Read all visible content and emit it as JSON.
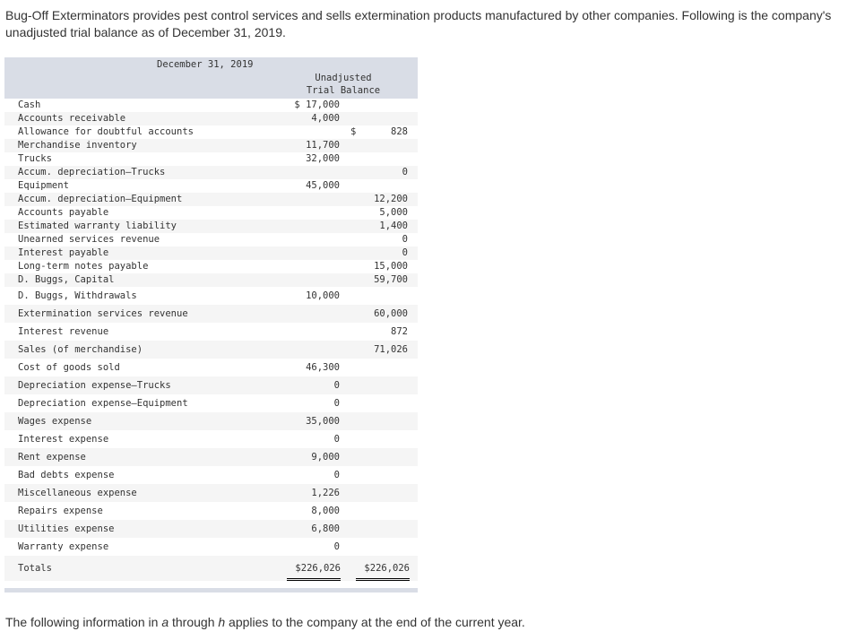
{
  "intro_text": "Bug-Off Exterminators provides pest control services and sells extermination products manufactured by other companies. Following is the company's unadjusted trial balance as of December 31, 2019.",
  "table": {
    "date": "December 31, 2019",
    "column_header_line1": "Unadjusted",
    "column_header_line2": "Trial Balance",
    "rows": [
      {
        "account": "Cash",
        "debit": "$ 17,000",
        "credit": ""
      },
      {
        "account": "Accounts receivable",
        "debit": "4,000",
        "credit": ""
      },
      {
        "account": "Allowance for doubtful accounts",
        "debit": "",
        "credit": "828",
        "credit_currency": "$"
      },
      {
        "account": "Merchandise inventory",
        "debit": "11,700",
        "credit": ""
      },
      {
        "account": "Trucks",
        "debit": "32,000",
        "credit": ""
      },
      {
        "account": "Accum. depreciation—Trucks",
        "debit": "",
        "credit": "0"
      },
      {
        "account": "Equipment",
        "debit": "45,000",
        "credit": ""
      },
      {
        "account": "Accum. depreciation—Equipment",
        "debit": "",
        "credit": "12,200"
      },
      {
        "account": "Accounts payable",
        "debit": "",
        "credit": "5,000"
      },
      {
        "account": "Estimated warranty liability",
        "debit": "",
        "credit": "1,400"
      },
      {
        "account": "Unearned services revenue",
        "debit": "",
        "credit": "0"
      },
      {
        "account": "Interest payable",
        "debit": "",
        "credit": "0"
      },
      {
        "account": "Long-term notes payable",
        "debit": "",
        "credit": "15,000"
      },
      {
        "account": "D. Buggs, Capital",
        "debit": "",
        "credit": "59,700"
      },
      {
        "account": "D. Buggs, Withdrawals",
        "debit": "10,000",
        "credit": ""
      },
      {
        "account": "Extermination services revenue",
        "debit": "",
        "credit": "60,000"
      },
      {
        "account": "Interest revenue",
        "debit": "",
        "credit": "872"
      },
      {
        "account": "Sales (of merchandise)",
        "debit": "",
        "credit": "71,026"
      },
      {
        "account": "Cost of goods sold",
        "debit": "46,300",
        "credit": ""
      },
      {
        "account": "Depreciation expense—Trucks",
        "debit": "0",
        "credit": ""
      },
      {
        "account": "Depreciation expense—Equipment",
        "debit": "0",
        "credit": ""
      },
      {
        "account": "Wages expense",
        "debit": "35,000",
        "credit": ""
      },
      {
        "account": "Interest expense",
        "debit": "0",
        "credit": ""
      },
      {
        "account": "Rent expense",
        "debit": "9,000",
        "credit": ""
      },
      {
        "account": "Bad debts expense",
        "debit": "0",
        "credit": ""
      },
      {
        "account": "Miscellaneous expense",
        "debit": "1,226",
        "credit": ""
      },
      {
        "account": "Repairs expense",
        "debit": "8,000",
        "credit": ""
      },
      {
        "account": "Utilities expense",
        "debit": "6,800",
        "credit": ""
      },
      {
        "account": "Warranty expense",
        "debit": "0",
        "credit": ""
      }
    ],
    "totals": {
      "label": "Totals",
      "debit": "$226,026",
      "credit": "$226,026"
    }
  },
  "outro": {
    "part1": "The following information in ",
    "a": "a",
    "part2": " through ",
    "h": "h",
    "part3": " applies to the company at the end of the current year."
  }
}
